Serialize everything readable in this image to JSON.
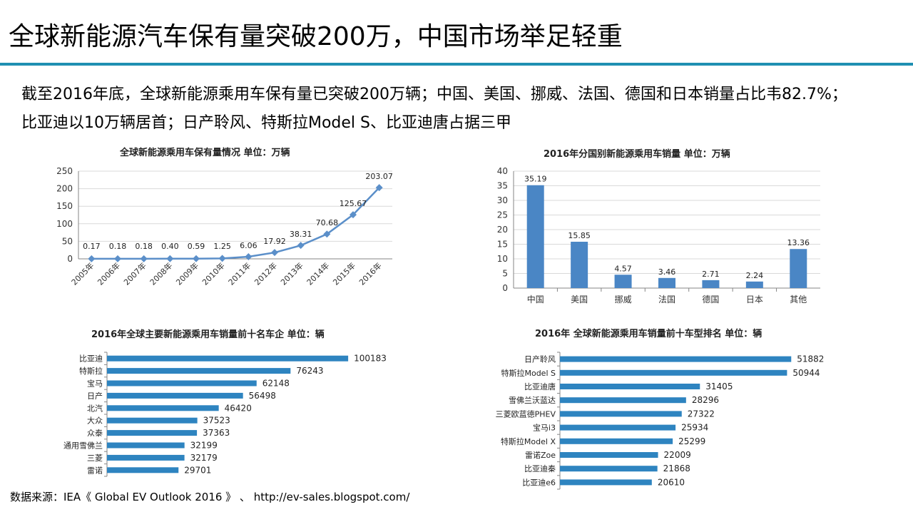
{
  "slide": {
    "title": "全球新能源汽车保有量突破200万，中国市场举足轻重",
    "summary_line1": "截至2016年底，全球新能源乘用车保有量已突破200万辆；中国、美国、挪威、法国、德国和日本销量占比韦82.7%；",
    "summary_line2": "比亚迪以10万辆居首；日产聆风、特斯拉Model S、比亚迪唐占据三甲",
    "source": "数据来源：IEA《 Global EV Outlook 2016 》 、 http://ev-sales.blogspot.com/"
  },
  "colors": {
    "accent_rule": "#1f8fb2",
    "line_series": "#5b8fc9",
    "bar_blue": "#4a86c5",
    "bar_hbar": "#2e84c0",
    "grid": "#d9d9d9",
    "axis": "#868686"
  },
  "chart_data": [
    {
      "id": "stock",
      "type": "line",
      "title": "全球新能源乘用车保有量情况  单位：万辆",
      "categories": [
        "2005年",
        "2006年",
        "2007年",
        "2008年",
        "2009年",
        "2010年",
        "2011年",
        "2012年",
        "2013年",
        "2014年",
        "2015年",
        "2016年"
      ],
      "values": [
        0.17,
        0.18,
        0.18,
        0.4,
        0.59,
        1.25,
        6.06,
        17.92,
        38.31,
        70.68,
        125.67,
        203.07
      ],
      "data_labels": [
        "0.17",
        "0.18",
        "0.18",
        "0.40",
        "0.59",
        "1.25",
        "6.06",
        "17.92",
        "38.31",
        "70.68",
        "125.67",
        "203.07"
      ],
      "ylim": [
        0,
        250
      ],
      "yticks": [
        0,
        50,
        100,
        150,
        200,
        250
      ],
      "grid": true
    },
    {
      "id": "country",
      "type": "bar",
      "title": "2016年分国别新能源乘用车销量   单位：万辆",
      "categories": [
        "中国",
        "美国",
        "挪威",
        "法国",
        "德国",
        "日本",
        "其他"
      ],
      "values": [
        35.19,
        15.85,
        4.57,
        3.46,
        2.71,
        2.24,
        13.36
      ],
      "data_labels": [
        "35.19",
        "15.85",
        "4.57",
        "3.46",
        "2.71",
        "2.24",
        "13.36"
      ],
      "ylim": [
        0,
        40
      ],
      "yticks": [
        0,
        5,
        10,
        15,
        20,
        25,
        30,
        35,
        40
      ],
      "grid": true
    },
    {
      "id": "makers",
      "type": "bar",
      "orientation": "horizontal",
      "title": "2016年全球主要新能源乘用车销量前十名车企  单位：辆",
      "categories": [
        "比亚迪",
        "特斯拉",
        "宝马",
        "日产",
        "北汽",
        "大众",
        "众泰",
        "通用雪佛兰",
        "三菱",
        "雷诺"
      ],
      "values": [
        100183,
        76243,
        62148,
        56498,
        46420,
        37523,
        37363,
        32199,
        32179,
        29701
      ],
      "xlim": [
        0,
        120000
      ]
    },
    {
      "id": "models",
      "type": "bar",
      "orientation": "horizontal",
      "title": "2016年 全球新能源乘用车销量前十车型排名   单位：辆",
      "categories": [
        "日产聆风",
        "特斯拉Model S",
        "比亚迪唐",
        "雪佛兰沃蓝达",
        "三菱欧蓝德PHEV",
        "宝马i3",
        "特斯拉Model X",
        "雷诺Zoe",
        "比亚迪秦",
        "比亚迪e6"
      ],
      "values": [
        51882,
        50944,
        31405,
        28296,
        27322,
        25934,
        25299,
        22009,
        21868,
        20610
      ],
      "xlim": [
        0,
        60000
      ]
    }
  ]
}
